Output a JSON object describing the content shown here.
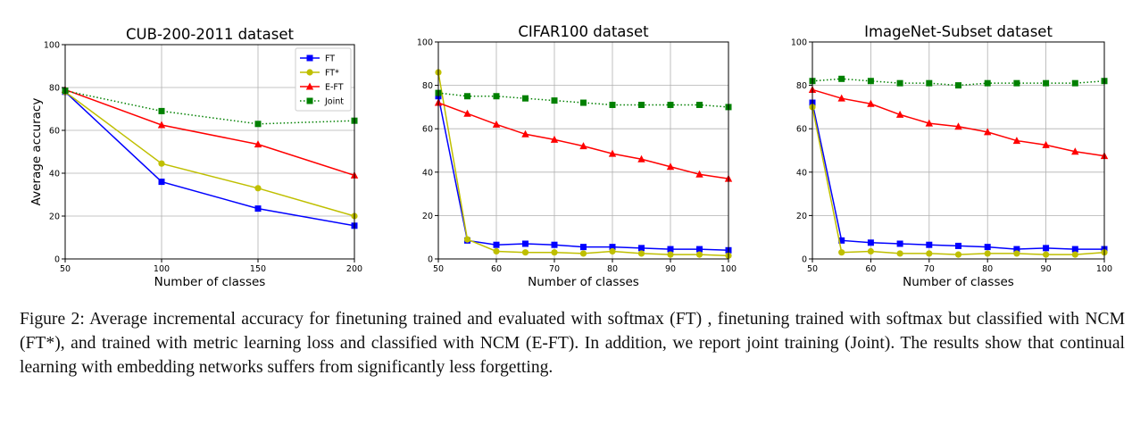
{
  "chart_data": [
    {
      "type": "line",
      "title": "CUB-200-2011 dataset",
      "xlabel": "Number of classes",
      "ylabel": "Average accuracy",
      "xlim": [
        50,
        200
      ],
      "ylim": [
        0,
        100
      ],
      "xticks": [
        50,
        100,
        150,
        200
      ],
      "yticks": [
        0,
        20,
        40,
        60,
        80,
        100
      ],
      "grid": true,
      "legend": "top-right",
      "series": [
        {
          "name": "FT",
          "color": "#0000ff",
          "marker": "square",
          "dash": "solid",
          "x": [
            50,
            100,
            150,
            200
          ],
          "y": [
            78,
            36,
            23.5,
            15.5
          ]
        },
        {
          "name": "FT*",
          "color": "#bfbf00",
          "marker": "circle",
          "dash": "solid",
          "x": [
            50,
            100,
            150,
            200
          ],
          "y": [
            78,
            44.5,
            33,
            20
          ]
        },
        {
          "name": "E-FT",
          "color": "#ff0000",
          "marker": "triangle",
          "dash": "solid",
          "x": [
            50,
            100,
            150,
            200
          ],
          "y": [
            79,
            62.5,
            53.5,
            39
          ]
        },
        {
          "name": "Joint",
          "color": "#008000",
          "marker": "square",
          "dash": "dotted",
          "x": [
            50,
            100,
            150,
            200
          ],
          "y": [
            78.5,
            69,
            63,
            64.5
          ]
        }
      ]
    },
    {
      "type": "line",
      "title": "CIFAR100 dataset",
      "xlabel": "Number of classes",
      "ylabel": "",
      "xlim": [
        50,
        100
      ],
      "ylim": [
        0,
        100
      ],
      "xticks": [
        50,
        60,
        70,
        80,
        90,
        100
      ],
      "yticks": [
        0,
        20,
        40,
        60,
        80,
        100
      ],
      "grid": true,
      "legend": "none",
      "series": [
        {
          "name": "FT",
          "color": "#0000ff",
          "marker": "square",
          "dash": "solid",
          "x": [
            50,
            55,
            60,
            65,
            70,
            75,
            80,
            85,
            90,
            95,
            100
          ],
          "y": [
            75,
            8.5,
            6.5,
            7,
            6.5,
            5.5,
            5.5,
            5,
            4.5,
            4.5,
            4
          ]
        },
        {
          "name": "FT*",
          "color": "#bfbf00",
          "marker": "circle",
          "dash": "solid",
          "x": [
            50,
            55,
            60,
            65,
            70,
            75,
            80,
            85,
            90,
            95,
            100
          ],
          "y": [
            86,
            9,
            3.5,
            3,
            3,
            2.5,
            3.5,
            2.5,
            2,
            2,
            1.5
          ]
        },
        {
          "name": "E-FT",
          "color": "#ff0000",
          "marker": "triangle",
          "dash": "solid",
          "x": [
            50,
            55,
            60,
            65,
            70,
            75,
            80,
            85,
            90,
            95,
            100
          ],
          "y": [
            72,
            67,
            62,
            57.5,
            55,
            52,
            48.5,
            46,
            42.5,
            39,
            37
          ]
        },
        {
          "name": "Joint",
          "color": "#008000",
          "marker": "square",
          "dash": "dotted",
          "x": [
            50,
            55,
            60,
            65,
            70,
            75,
            80,
            85,
            90,
            95,
            100
          ],
          "y": [
            76.5,
            75,
            75,
            74,
            73,
            72,
            71,
            71,
            71,
            71,
            70
          ]
        }
      ]
    },
    {
      "type": "line",
      "title": "ImageNet-Subset dataset",
      "xlabel": "Number of classes",
      "ylabel": "",
      "xlim": [
        50,
        100
      ],
      "ylim": [
        0,
        100
      ],
      "xticks": [
        50,
        60,
        70,
        80,
        90,
        100
      ],
      "yticks": [
        0,
        20,
        40,
        60,
        80,
        100
      ],
      "grid": true,
      "legend": "none",
      "series": [
        {
          "name": "FT",
          "color": "#0000ff",
          "marker": "square",
          "dash": "solid",
          "x": [
            50,
            55,
            60,
            65,
            70,
            75,
            80,
            85,
            90,
            95,
            100
          ],
          "y": [
            72,
            8.5,
            7.5,
            7,
            6.5,
            6,
            5.5,
            4.5,
            5,
            4.5,
            4.5
          ]
        },
        {
          "name": "FT*",
          "color": "#bfbf00",
          "marker": "circle",
          "dash": "solid",
          "x": [
            50,
            55,
            60,
            65,
            70,
            75,
            80,
            85,
            90,
            95,
            100
          ],
          "y": [
            70,
            3,
            3.5,
            2.5,
            2.5,
            2,
            2.5,
            2.5,
            2,
            2,
            3
          ]
        },
        {
          "name": "E-FT",
          "color": "#ff0000",
          "marker": "triangle",
          "dash": "solid",
          "x": [
            50,
            55,
            60,
            65,
            70,
            75,
            80,
            85,
            90,
            95,
            100
          ],
          "y": [
            78,
            74,
            71.5,
            66.5,
            62.5,
            61,
            58.5,
            54.5,
            52.5,
            49.5,
            47.5
          ]
        },
        {
          "name": "Joint",
          "color": "#008000",
          "marker": "square",
          "dash": "dotted",
          "x": [
            50,
            55,
            60,
            65,
            70,
            75,
            80,
            85,
            90,
            95,
            100
          ],
          "y": [
            82,
            83,
            82,
            81,
            81,
            80,
            81,
            81,
            81,
            81,
            82
          ]
        }
      ]
    }
  ],
  "caption": "Figure 2: Average incremental accuracy for finetuning trained and evaluated with softmax (FT) , finetuning trained with softmax but classified with NCM (FT*), and trained with metric learning loss and classified with NCM (E-FT). In addition, we report joint training (Joint). The results show that continual learning with embedding networks suffers from significantly less forgetting."
}
